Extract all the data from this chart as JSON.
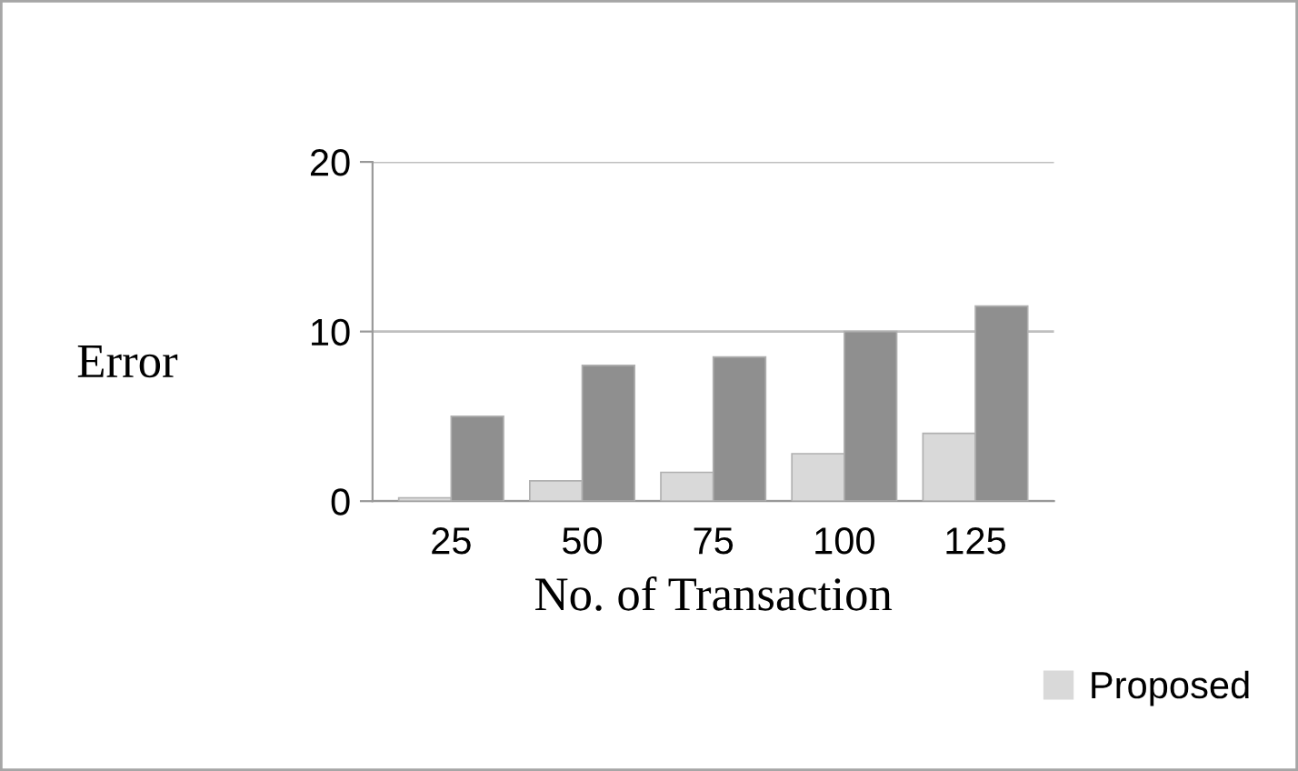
{
  "chart_data": {
    "type": "bar",
    "xlabel": "No. of Transaction",
    "ylabel": "Error",
    "categories": [
      "25",
      "50",
      "75",
      "100",
      "125"
    ],
    "series": [
      {
        "name": "Proposed",
        "color": "#d9d9d9",
        "values": [
          0.2,
          1.2,
          1.7,
          2.8,
          4
        ]
      },
      {
        "color": "#8f8f8f",
        "values": [
          5,
          8,
          8.5,
          10,
          11.5
        ]
      }
    ],
    "ylim": [
      0,
      20
    ],
    "yticks": [
      0,
      10,
      20
    ],
    "grid": "y",
    "legend": "bottom right"
  }
}
